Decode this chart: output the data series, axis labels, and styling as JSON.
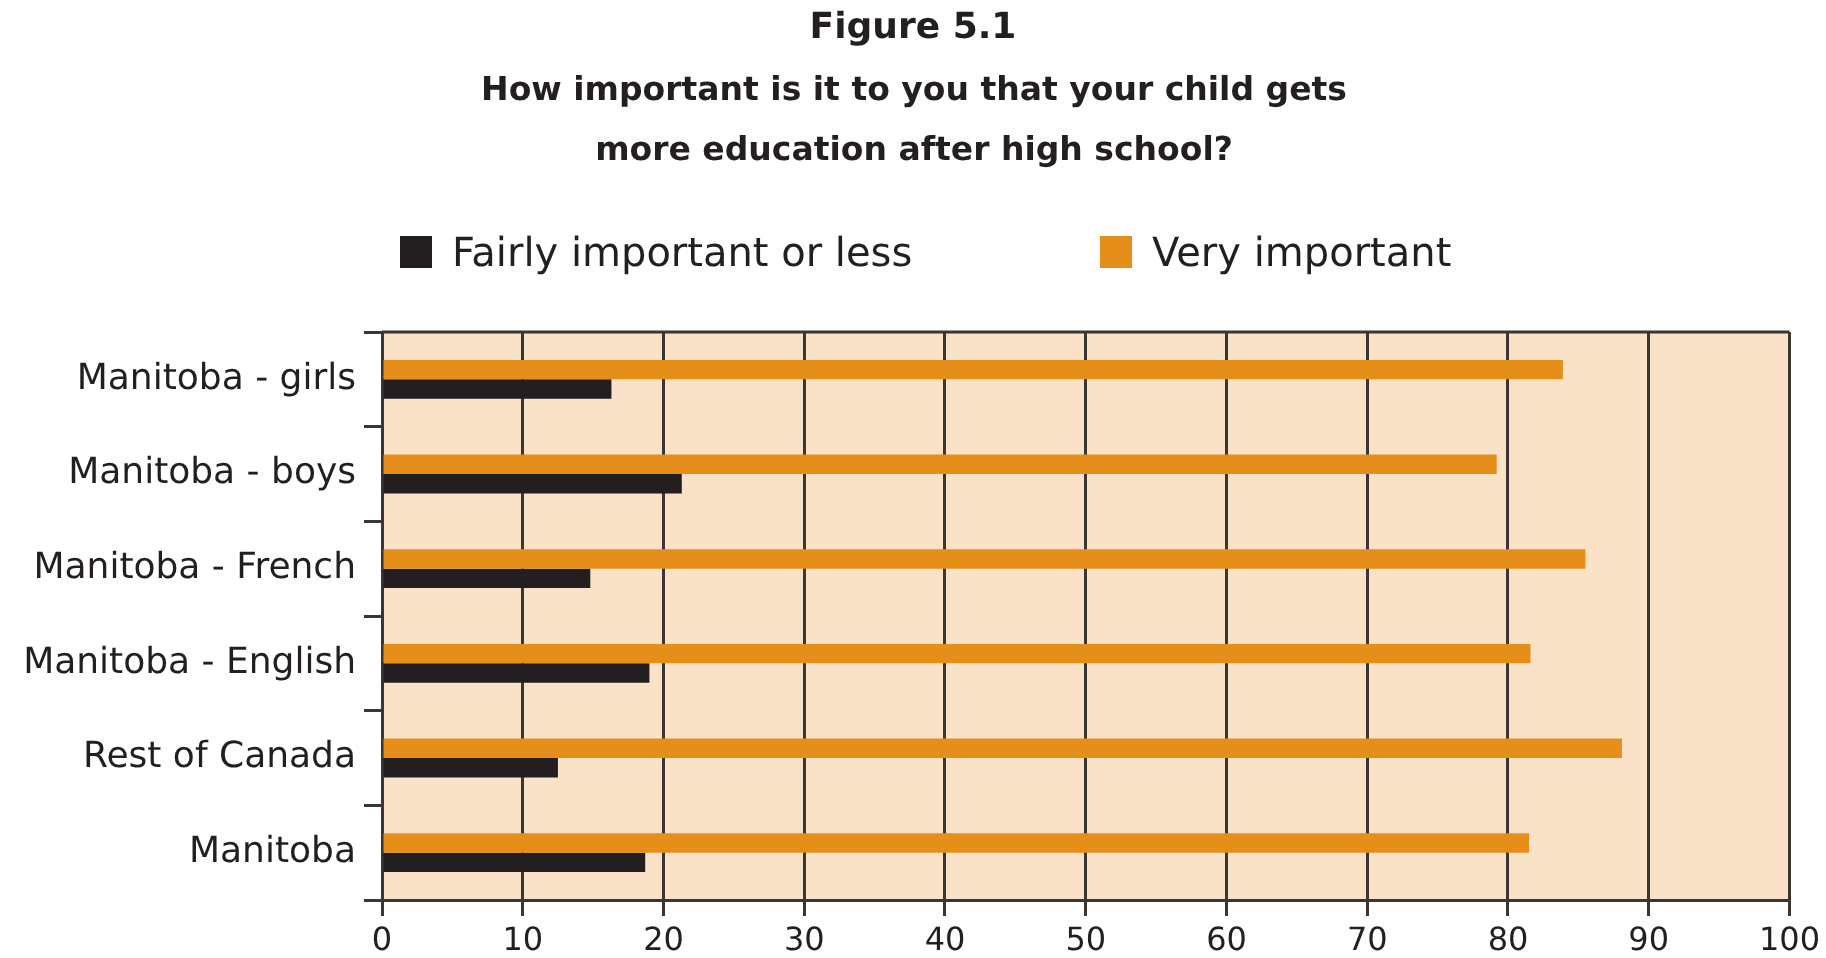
{
  "chart_data": {
    "type": "bar",
    "orientation": "horizontal",
    "title": "Figure 5.1",
    "subtitle": "How important is it to you that your child gets more education after high school?",
    "categories": [
      "Manitoba - girls",
      "Manitoba - boys",
      "Manitoba - French",
      "Manitoba - English",
      "Rest of Canada",
      "Manitoba"
    ],
    "series": [
      {
        "name": "Fairly important or less",
        "color": "#231f20",
        "values": [
          16.3,
          21.3,
          14.8,
          19.0,
          12.5,
          18.7
        ]
      },
      {
        "name": "Very important",
        "color": "#e58e1a",
        "values": [
          83.9,
          79.2,
          85.5,
          81.6,
          88.1,
          81.5
        ]
      }
    ],
    "xlim": [
      0,
      100
    ],
    "xticks": [
      0,
      10,
      20,
      30,
      40,
      50,
      60,
      70,
      80,
      90,
      100
    ],
    "grid": "x",
    "legend": "top"
  }
}
